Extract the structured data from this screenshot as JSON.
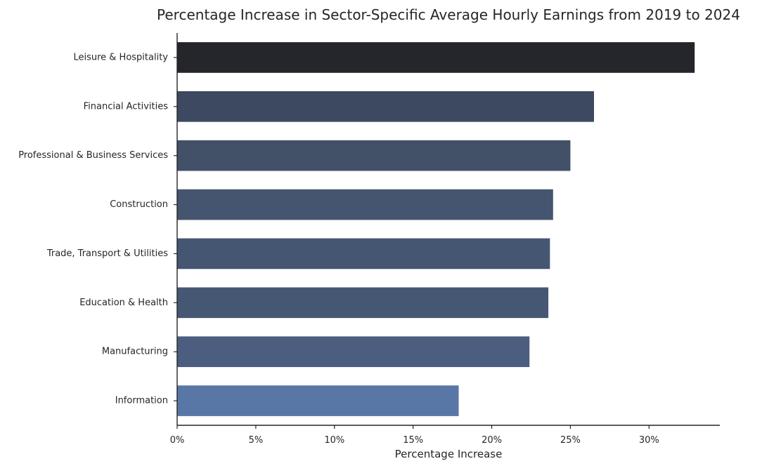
{
  "chart_data": {
    "type": "bar",
    "orientation": "horizontal",
    "title": "Percentage Increase in Sector-Specific Average Hourly Earnings from 2019 to 2024",
    "xlabel": "Percentage Increase",
    "ylabel": "",
    "xlim": [
      0,
      34.5
    ],
    "x_ticks": [
      0,
      5,
      10,
      15,
      20,
      25,
      30
    ],
    "x_tick_labels": [
      "0%",
      "5%",
      "10%",
      "15%",
      "20%",
      "25%",
      "30%"
    ],
    "categories": [
      "Leisure & Hospitality",
      "Financial Activities",
      "Professional & Business Services",
      "Construction",
      "Trade, Transport & Utilities",
      "Education & Health",
      "Manufacturing",
      "Information"
    ],
    "values": [
      32.9,
      26.5,
      25.0,
      23.9,
      23.7,
      23.6,
      22.4,
      17.9
    ],
    "bar_colors": [
      "#25262b",
      "#3d4960",
      "#425068",
      "#45556f",
      "#455673",
      "#465774",
      "#4b5e7f",
      "#5977a6"
    ],
    "grid": false,
    "legend": "none"
  }
}
